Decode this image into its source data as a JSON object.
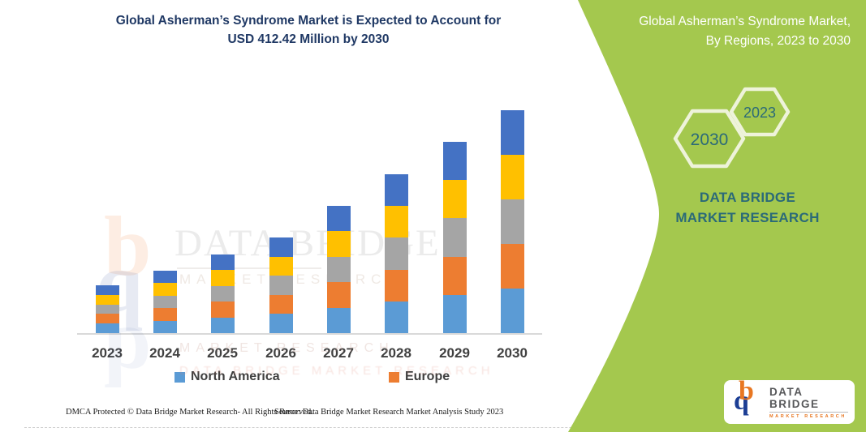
{
  "header": {
    "title_line1": "Global Asherman’s Syndrome Market is Expected to Account for",
    "title_line2": "USD 412.42 Million by 2030",
    "title_color": "#1f3864"
  },
  "chart_data": {
    "type": "bar",
    "stacked": true,
    "title": "Global Asherman’s Syndrome Market is Expected to Account for USD 412.42 Million by 2030",
    "categories": [
      "2023",
      "2024",
      "2025",
      "2026",
      "2027",
      "2028",
      "2029",
      "2030"
    ],
    "totals_usd_million": [
      88.5,
      115.5,
      145.5,
      177.0,
      235.5,
      294.0,
      354.0,
      412.42
    ],
    "series": [
      {
        "name": "North America",
        "color": "#5B9BD5",
        "values": [
          17.7,
          23.1,
          29.1,
          35.4,
          47.1,
          58.8,
          70.8,
          82.48
        ]
      },
      {
        "name": "Europe",
        "color": "#ED7D31",
        "values": [
          17.7,
          23.1,
          29.1,
          35.4,
          47.1,
          58.8,
          70.8,
          82.48
        ]
      },
      {
        "name": "",
        "color": "#A5A5A5",
        "values": [
          17.7,
          23.1,
          29.1,
          35.4,
          47.1,
          58.8,
          70.8,
          82.48
        ]
      },
      {
        "name": "",
        "color": "#FFC000",
        "values": [
          17.7,
          23.1,
          29.1,
          35.4,
          47.1,
          58.8,
          70.8,
          82.48
        ]
      },
      {
        "name": "",
        "color": "#4472C4",
        "values": [
          17.7,
          23.1,
          29.1,
          35.4,
          47.1,
          58.8,
          70.8,
          82.48
        ]
      }
    ],
    "xlabel": "",
    "ylabel": "",
    "ylim": [
      0,
      450
    ],
    "grid": false,
    "y_axis_visible": false,
    "legend_position": "bottom",
    "legend_visible_entries": [
      "North America",
      "Europe"
    ],
    "axis_line_color": "#d9d9d9"
  },
  "watermark": {
    "title": "DATA BRIDGE",
    "subtitle": "MARKET RESEARCH",
    "faint_row1": "MARKET RESEARCH",
    "faint_row2": "DATA BRIDGE MARKET RESEARCH"
  },
  "footer": {
    "left": "DMCA Protected © Data Bridge Market Research-  All Rights Reserved.",
    "source": "Source: Data Bridge Market Research  Market Analysis Study 2023"
  },
  "side_panel": {
    "bg_color": "#a4c84e",
    "title_line1": "Global Asherman’s Syndrome Market,",
    "title_line2": "By Regions, 2023 to 2030",
    "hexagons": [
      {
        "year": "2030"
      },
      {
        "year": "2023"
      }
    ],
    "hexagon_outline_color": "#eef3da",
    "year_text_color": "#2b6a78",
    "brand_text": "DATA BRIDGE MARKET RESEARCH",
    "brand_color": "#2b6a78",
    "logo_card": {
      "brand": "DATA BRIDGE",
      "sub": "MARKET RESEARCH"
    }
  }
}
